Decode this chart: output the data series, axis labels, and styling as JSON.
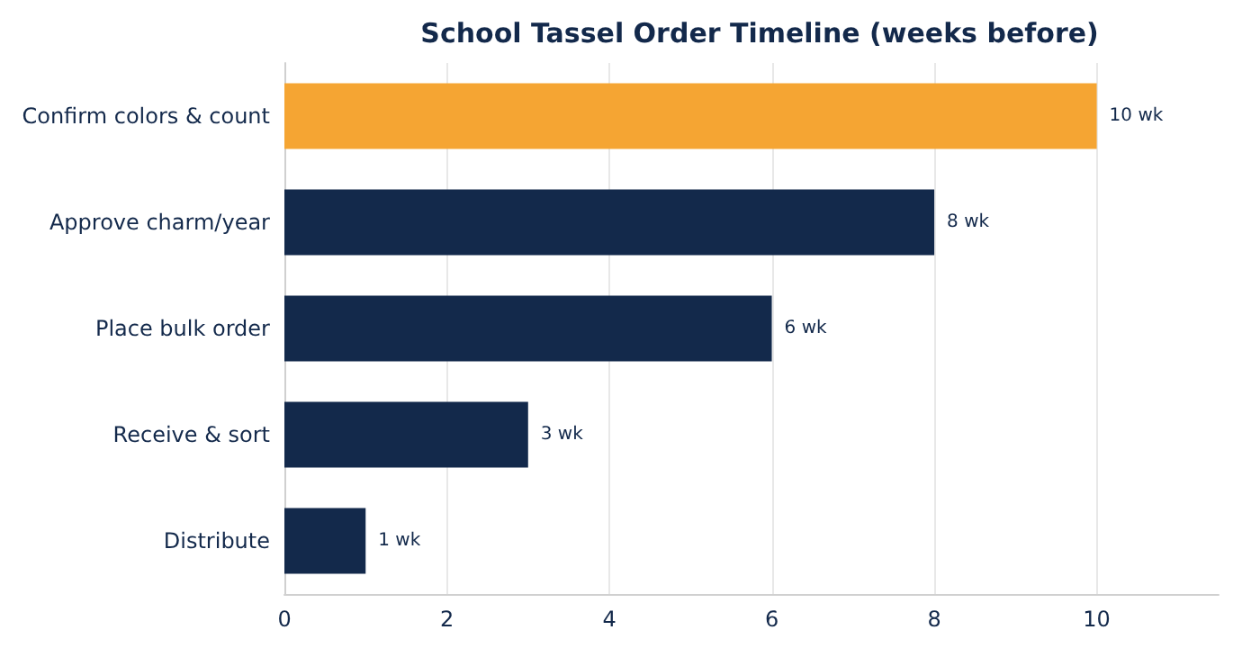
{
  "chart_data": {
    "type": "bar",
    "orientation": "horizontal",
    "title": "School Tassel Order Timeline (weeks before)",
    "categories": [
      "Confirm colors & count",
      "Approve charm/year",
      "Place bulk order",
      "Receive & sort",
      "Distribute"
    ],
    "values": [
      10,
      8,
      6,
      3,
      1
    ],
    "colors": [
      "#f5a533",
      "#13294b",
      "#13294b",
      "#13294b",
      "#13294b"
    ],
    "value_labels": [
      "10 wk",
      "8 wk",
      "6 wk",
      "3 wk",
      "1 wk"
    ],
    "xlim": [
      0,
      11.5
    ],
    "xticks": [
      0,
      2,
      4,
      6,
      8,
      10
    ],
    "grid": "x"
  }
}
